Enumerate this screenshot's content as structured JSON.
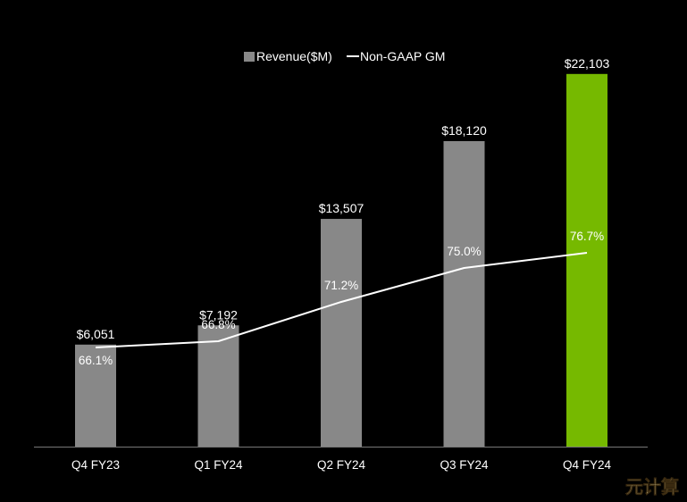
{
  "chart_data": {
    "type": "bar",
    "title": "",
    "xlabel": "",
    "ylabel": "",
    "categories": [
      "Q4 FY23",
      "Q1 FY24",
      "Q2 FY24",
      "Q3 FY24",
      "Q4 FY24"
    ],
    "series": [
      {
        "name": "Revenue($M)",
        "type": "bar",
        "values": [
          6051,
          7192,
          13507,
          18120,
          22103
        ],
        "labels": [
          "$6,051",
          "$7,192",
          "$13,507",
          "$18,120",
          "$22,103"
        ],
        "colors": [
          "#888888",
          "#888888",
          "#888888",
          "#888888",
          "#76b900"
        ]
      },
      {
        "name": "Non-GAAP GM",
        "type": "line",
        "values": [
          66.1,
          66.8,
          71.2,
          75.0,
          76.7
        ],
        "labels": [
          "66.1%",
          "66.8%",
          "71.2%",
          "75.0%",
          "76.7%"
        ],
        "color": "#ffffff"
      }
    ],
    "ylim": [
      0,
      24000
    ],
    "y2lim": [
      55,
      95
    ],
    "grid": false,
    "legend_position": "top-center"
  },
  "watermark": "元计算"
}
